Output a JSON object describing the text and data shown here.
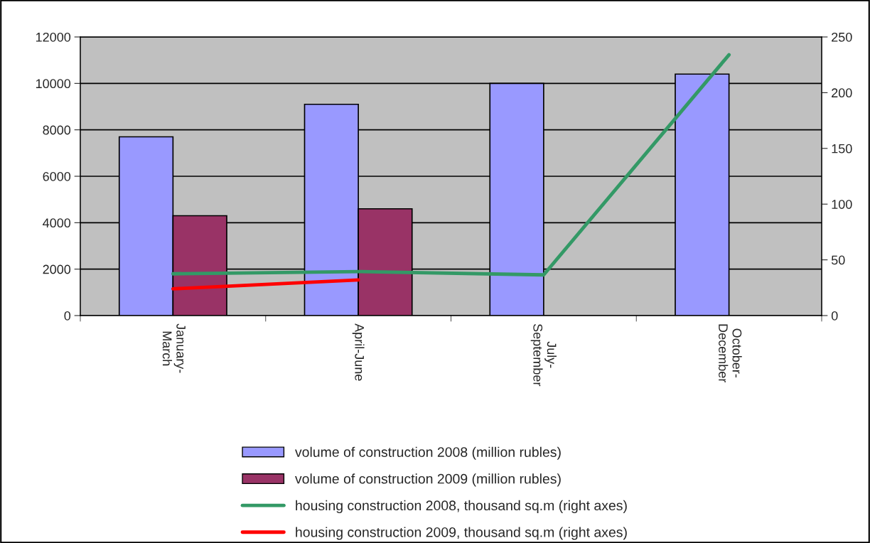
{
  "chart_data": {
    "type": "bar",
    "categories": [
      "January-\nMarch",
      "April-June",
      "July-\nSeptember",
      "October-\nDecember"
    ],
    "series": [
      {
        "name": "volume of construction 2008 (million rubles)",
        "color": "#9999ff",
        "values": [
          7700,
          9100,
          10000,
          10400
        ]
      },
      {
        "name": "volume of construction 2009 (million rubles)",
        "color": "#993366",
        "values": [
          4300,
          4600,
          null,
          null
        ]
      },
      {
        "name": "housing construction 2008, thousand sq.m (right axes)",
        "type": "line",
        "axis": "y2",
        "color": "#339966",
        "values": [
          37.5,
          39.5,
          36.5,
          234
        ]
      },
      {
        "name": "housing construction 2009, thousand sq.m (right axes)",
        "type": "line",
        "axis": "y2",
        "color": "#ff0000",
        "values": [
          24,
          32,
          null,
          null
        ]
      }
    ],
    "ylim": [
      0,
      12000
    ],
    "yticks": [
      0,
      2000,
      4000,
      6000,
      8000,
      10000,
      12000
    ],
    "y2lim": [
      0,
      250
    ],
    "y2ticks": [
      0,
      50,
      100,
      150,
      200,
      250
    ],
    "grid": "y",
    "legend": "bottom"
  }
}
